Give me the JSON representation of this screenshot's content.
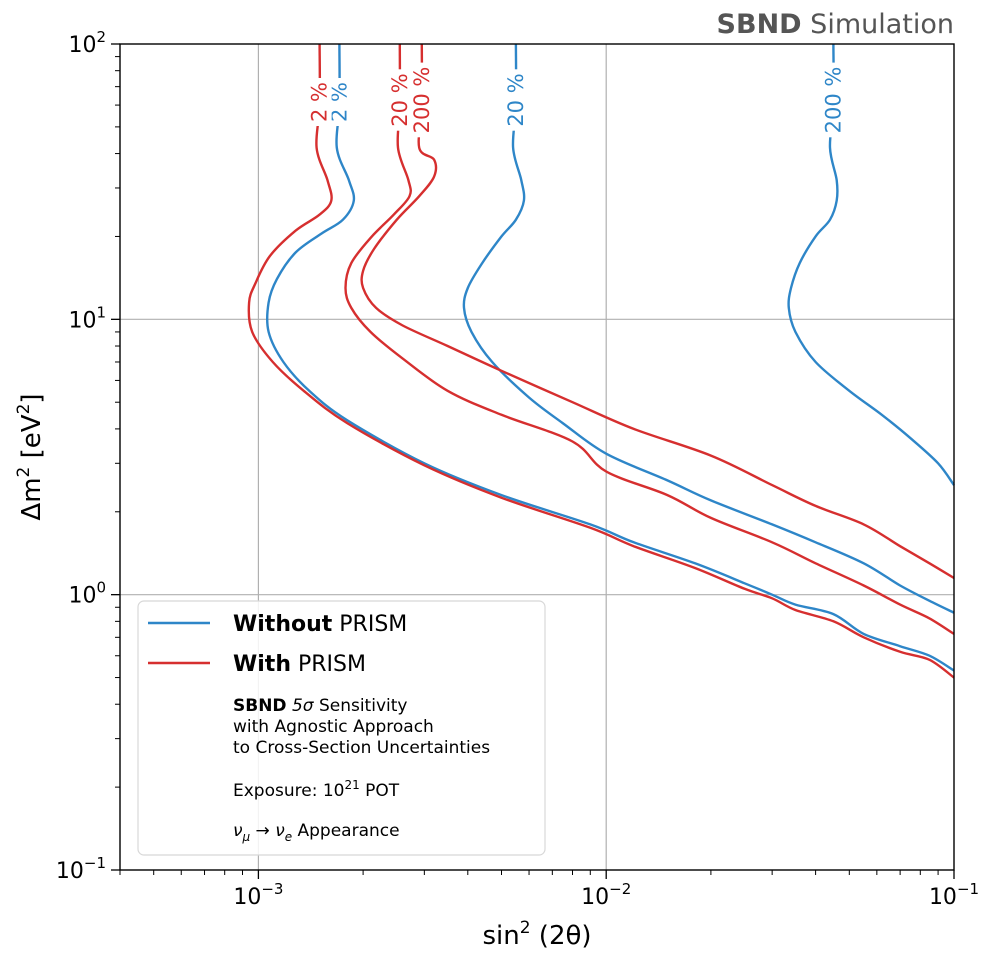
{
  "chart_data": {
    "type": "line",
    "title_bold": "SBND",
    "title_rest": " Simulation",
    "xlabel_main": "sin",
    "xlabel_sup": "2",
    "xlabel_rest": " (2θ)",
    "ylabel_main": "Δm",
    "ylabel_sup": "2",
    "ylabel_rest": " [eV",
    "ylabel_sup2": "2",
    "ylabel_end": "]",
    "xscale": "log",
    "yscale": "log",
    "xlim": [
      0.0004,
      0.1
    ],
    "ylim": [
      0.1,
      100
    ],
    "grid": true,
    "x_ticks": [
      {
        "value": 0.001,
        "base": "10",
        "exp": "−3"
      },
      {
        "value": 0.01,
        "base": "10",
        "exp": "−2"
      },
      {
        "value": 0.1,
        "base": "10",
        "exp": "−1"
      }
    ],
    "y_ticks": [
      {
        "value": 0.1,
        "base": "10",
        "exp": "−1"
      },
      {
        "value": 1,
        "base": "10",
        "exp": "0"
      },
      {
        "value": 10,
        "base": "10",
        "exp": "1"
      },
      {
        "value": 100,
        "base": "10",
        "exp": "2"
      }
    ],
    "colors": {
      "without": "#2e86c8",
      "with": "#d62f2f"
    },
    "series": [
      {
        "name": "Without PRISM 2 %",
        "group": "without",
        "label": "2 %",
        "points": [
          [
            0.00171,
            100
          ],
          [
            0.00171,
            60
          ],
          [
            0.00168,
            42
          ],
          [
            0.00182,
            32
          ],
          [
            0.00188,
            27
          ],
          [
            0.00175,
            23
          ],
          [
            0.00152,
            20.5
          ],
          [
            0.00128,
            17.5
          ],
          [
            0.00113,
            14
          ],
          [
            0.00107,
            11.5
          ],
          [
            0.00107,
            9
          ],
          [
            0.00118,
            7
          ],
          [
            0.0014,
            5.5
          ],
          [
            0.0018,
            4.3
          ],
          [
            0.003,
            3.0
          ],
          [
            0.005,
            2.3
          ],
          [
            0.009,
            1.8
          ],
          [
            0.012,
            1.55
          ],
          [
            0.018,
            1.3
          ],
          [
            0.025,
            1.1
          ],
          [
            0.03,
            1.0
          ],
          [
            0.035,
            0.92
          ],
          [
            0.045,
            0.85
          ],
          [
            0.055,
            0.72
          ],
          [
            0.07,
            0.65
          ],
          [
            0.085,
            0.6
          ],
          [
            0.1,
            0.53
          ]
        ]
      },
      {
        "name": "Without PRISM 20 %",
        "group": "without",
        "label": "20 %",
        "points": [
          [
            0.0055,
            100
          ],
          [
            0.0055,
            60
          ],
          [
            0.0054,
            42
          ],
          [
            0.0057,
            32
          ],
          [
            0.0058,
            27
          ],
          [
            0.0055,
            23
          ],
          [
            0.005,
            20
          ],
          [
            0.0044,
            16
          ],
          [
            0.004,
            13
          ],
          [
            0.0039,
            11
          ],
          [
            0.0041,
            9
          ],
          [
            0.0047,
            7
          ],
          [
            0.006,
            5.2
          ],
          [
            0.0075,
            4.2
          ],
          [
            0.01,
            3.25
          ],
          [
            0.015,
            2.6
          ],
          [
            0.02,
            2.2
          ],
          [
            0.03,
            1.8
          ],
          [
            0.04,
            1.55
          ],
          [
            0.055,
            1.3
          ],
          [
            0.07,
            1.08
          ],
          [
            0.085,
            0.95
          ],
          [
            0.1,
            0.86
          ]
        ]
      },
      {
        "name": "Without PRISM 200 %",
        "group": "without",
        "label": "200 %",
        "points": [
          [
            0.045,
            100
          ],
          [
            0.045,
            60
          ],
          [
            0.044,
            42
          ],
          [
            0.046,
            32
          ],
          [
            0.046,
            27
          ],
          [
            0.044,
            23
          ],
          [
            0.04,
            20
          ],
          [
            0.036,
            16
          ],
          [
            0.034,
            13
          ],
          [
            0.0335,
            11
          ],
          [
            0.035,
            9
          ],
          [
            0.04,
            7
          ],
          [
            0.05,
            5.5
          ],
          [
            0.062,
            4.5
          ],
          [
            0.075,
            3.7
          ],
          [
            0.09,
            3.0
          ],
          [
            0.1,
            2.5
          ]
        ]
      },
      {
        "name": "With PRISM 2 %",
        "group": "with",
        "label": "2 %",
        "points": [
          [
            0.0015,
            100
          ],
          [
            0.0015,
            60
          ],
          [
            0.00147,
            42
          ],
          [
            0.00158,
            32
          ],
          [
            0.00162,
            27
          ],
          [
            0.0015,
            24
          ],
          [
            0.00128,
            21
          ],
          [
            0.00108,
            17
          ],
          [
            0.00098,
            13.5
          ],
          [
            0.00094,
            11.5
          ],
          [
            0.00096,
            9
          ],
          [
            0.0011,
            7
          ],
          [
            0.00135,
            5.5
          ],
          [
            0.0018,
            4.2
          ],
          [
            0.003,
            2.95
          ],
          [
            0.005,
            2.25
          ],
          [
            0.009,
            1.75
          ],
          [
            0.012,
            1.5
          ],
          [
            0.018,
            1.25
          ],
          [
            0.025,
            1.05
          ],
          [
            0.03,
            0.97
          ],
          [
            0.035,
            0.88
          ],
          [
            0.045,
            0.8
          ],
          [
            0.055,
            0.7
          ],
          [
            0.07,
            0.62
          ],
          [
            0.085,
            0.58
          ],
          [
            0.1,
            0.5
          ]
        ]
      },
      {
        "name": "With PRISM 20 %",
        "group": "with",
        "label": "20 %",
        "points": [
          [
            0.00255,
            100
          ],
          [
            0.00255,
            60
          ],
          [
            0.00252,
            42
          ],
          [
            0.0027,
            32
          ],
          [
            0.00272,
            28
          ],
          [
            0.00245,
            24
          ],
          [
            0.00212,
            20
          ],
          [
            0.00185,
            16
          ],
          [
            0.00178,
            13
          ],
          [
            0.00185,
            11
          ],
          [
            0.0021,
            9
          ],
          [
            0.0026,
            7.2
          ],
          [
            0.0035,
            5.5
          ],
          [
            0.005,
            4.5
          ],
          [
            0.008,
            3.6
          ],
          [
            0.01,
            2.8
          ],
          [
            0.015,
            2.3
          ],
          [
            0.02,
            1.9
          ],
          [
            0.03,
            1.55
          ],
          [
            0.04,
            1.3
          ],
          [
            0.055,
            1.08
          ],
          [
            0.07,
            0.92
          ],
          [
            0.085,
            0.82
          ],
          [
            0.1,
            0.72
          ]
        ]
      },
      {
        "name": "With PRISM 200 %",
        "group": "with",
        "label": "200 %",
        "points": [
          [
            0.00295,
            100
          ],
          [
            0.00295,
            60
          ],
          [
            0.0029,
            42
          ],
          [
            0.0032,
            38
          ],
          [
            0.0032,
            33
          ],
          [
            0.0029,
            28
          ],
          [
            0.0025,
            23
          ],
          [
            0.00215,
            18
          ],
          [
            0.002,
            15
          ],
          [
            0.002,
            13
          ],
          [
            0.00218,
            11
          ],
          [
            0.0026,
            9.5
          ],
          [
            0.0035,
            8
          ],
          [
            0.005,
            6.5
          ],
          [
            0.008,
            5
          ],
          [
            0.012,
            4
          ],
          [
            0.02,
            3.2
          ],
          [
            0.03,
            2.5
          ],
          [
            0.04,
            2.1
          ],
          [
            0.055,
            1.8
          ],
          [
            0.07,
            1.5
          ],
          [
            0.085,
            1.3
          ],
          [
            0.1,
            1.15
          ]
        ]
      }
    ],
    "legend": {
      "placement": "lower-left",
      "entries": [
        {
          "group": "without",
          "bold": "Without",
          "rest": " PRISM"
        },
        {
          "group": "with",
          "bold": "With",
          "rest": " PRISM"
        }
      ],
      "note_bold": "SBND",
      "note_sigma": " 5σ",
      "note_line1_rest": " Sensitivity",
      "note_line2": "with Agnostic Approach",
      "note_line3": "to Cross-Section Uncertainties",
      "exposure_prefix": "Exposure: 10",
      "exposure_sup": "21",
      "exposure_suffix": " POT",
      "appearance": "ν",
      "appearance_sub1": "μ",
      "appearance_arrow": " → ν",
      "appearance_sub2": "e",
      "appearance_suffix": " Appearance"
    }
  }
}
